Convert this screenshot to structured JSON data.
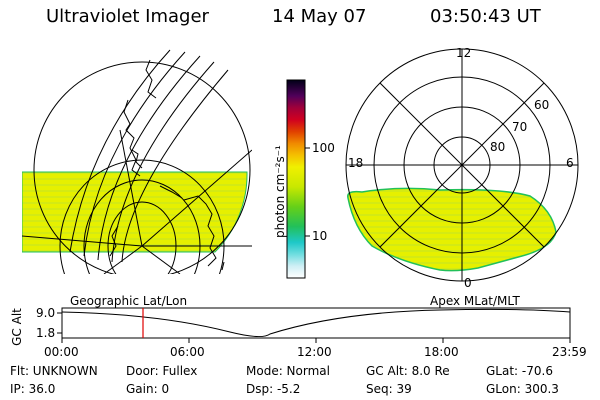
{
  "header": {
    "instrument": "Ultraviolet Imager",
    "date": "14 May 07",
    "time": "03:50:43 UT"
  },
  "colorbar": {
    "unit_label": "photon cm⁻²s⁻¹",
    "ticks": [
      "100",
      "10"
    ]
  },
  "polar_plot": {
    "mlt_labels": [
      "12",
      "18",
      "6",
      "0"
    ],
    "lat_labels": [
      "60",
      "70",
      "80"
    ]
  },
  "timeline": {
    "left_label": "Geographic Lat/Lon",
    "right_label": "Apex MLat/MLT",
    "axis_label": "GC Alt",
    "y_max": "9.0",
    "y_min": "1.8",
    "x_ticks": [
      "00:00",
      "06:00",
      "12:00",
      "18:00",
      "23:59"
    ]
  },
  "info": {
    "row1": {
      "flt": "Flt: UNKNOWN",
      "door": "Door: Fullex",
      "mode": "Mode: Normal",
      "gcalt": "GC Alt: 8.0 Re",
      "glat": "GLat: -70.6"
    },
    "row2": {
      "ip": "IP: 36.0",
      "gain": "Gain:  0",
      "dsp": "Dsp:    -5.2",
      "seq": "Seq: 39",
      "glon": "GLon: 300.3"
    }
  },
  "colors": {
    "aurora_fill": "#e6f000",
    "aurora_edge": "#22c05a",
    "cursor": "#e00000"
  }
}
